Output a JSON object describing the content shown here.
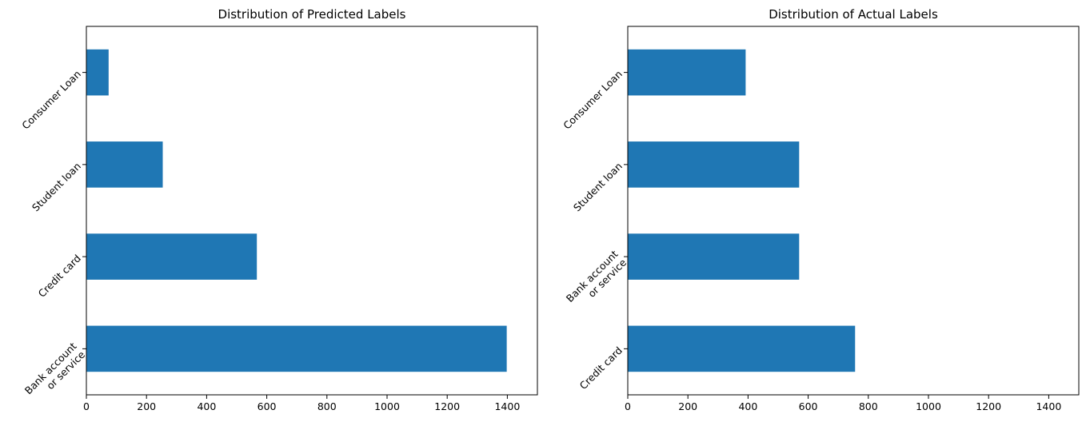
{
  "chart_data": [
    {
      "type": "bar",
      "orientation": "horizontal",
      "title": "Distribution of Predicted Labels",
      "xlabel": "",
      "ylabel": "",
      "categories": [
        "Bank account\nor service",
        "Credit card",
        "Student loan",
        "Consumer Loan"
      ],
      "values": [
        1398,
        567,
        254,
        74
      ],
      "xlim": [
        0,
        1500
      ],
      "xticks": [
        0,
        200,
        400,
        600,
        800,
        1000,
        1200,
        1400
      ],
      "bar_color": "#1f77b4",
      "grid": false,
      "legend": "none"
    },
    {
      "type": "bar",
      "orientation": "horizontal",
      "title": "Distribution of Actual Labels",
      "xlabel": "",
      "ylabel": "",
      "categories": [
        "Credit card",
        "Bank account\nor service",
        "Student loan",
        "Consumer Loan"
      ],
      "values": [
        756,
        570,
        570,
        392
      ],
      "xlim": [
        0,
        1500
      ],
      "xticks": [
        0,
        200,
        400,
        600,
        800,
        1000,
        1200,
        1400
      ],
      "bar_color": "#1f77b4",
      "grid": false,
      "legend": "none"
    }
  ]
}
